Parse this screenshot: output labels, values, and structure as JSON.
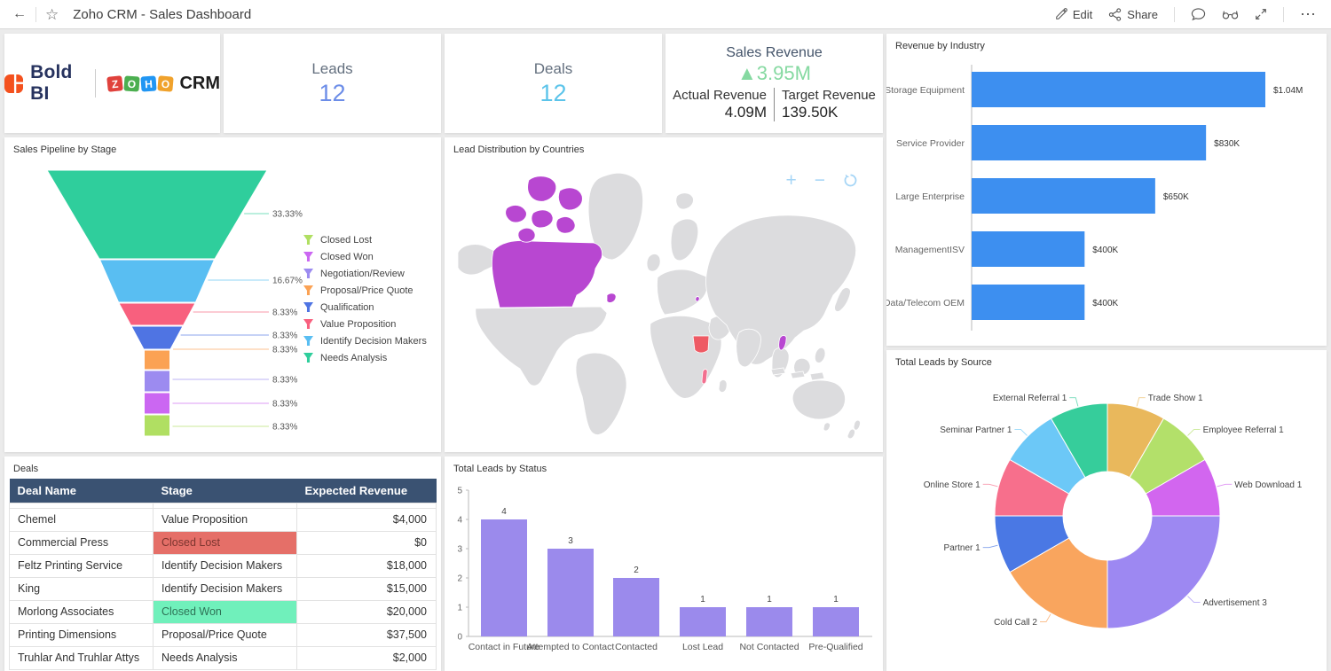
{
  "header": {
    "title": "Zoho CRM - Sales Dashboard",
    "edit_label": "Edit",
    "share_label": "Share"
  },
  "cards": {
    "logo": {
      "brand": "Bold BI",
      "zoho_letters": [
        "Z",
        "O",
        "H",
        "O"
      ],
      "zoho_colors": [
        "#e0413c",
        "#4caf50",
        "#2196f3",
        "#f0a22c"
      ],
      "crm": "CRM"
    },
    "leads": {
      "label": "Leads",
      "value": "12",
      "value_color": "#6c8de8"
    },
    "deals": {
      "label": "Deals",
      "value": "12",
      "value_color": "#5cc4ea"
    },
    "revenue": {
      "title": "Sales Revenue",
      "delta": "▲3.95M",
      "delta_color": "#85d9a1",
      "actual_label": "Actual Revenue",
      "actual_value": "4.09M",
      "target_label": "Target Revenue",
      "target_value": "139.50K"
    }
  },
  "panels": {
    "revenue_by_industry": {
      "title": "Revenue by Industry",
      "type": "bar",
      "orientation": "horizontal",
      "bar_color": "#3d8ff0",
      "categories": [
        "Storage Equipment",
        "Service Provider",
        "Large Enterprise",
        "ManagementISV",
        "Data/Telecom OEM"
      ],
      "values_k": [
        1040,
        830,
        650,
        400,
        400
      ],
      "value_labels": [
        "$1.04M",
        "$830K",
        "$650K",
        "$400K",
        "$400K"
      ]
    },
    "sales_pipeline": {
      "title": "Sales Pipeline by Stage",
      "type": "funnel",
      "segments": [
        {
          "name": "Needs Analysis",
          "pct": "33.33%",
          "color": "#2fce9c"
        },
        {
          "name": "Identify Decision Makers",
          "pct": "16.67%",
          "color": "#59bef2"
        },
        {
          "name": "Value Proposition",
          "pct": "8.33%",
          "color": "#f8607e"
        },
        {
          "name": "Qualification",
          "pct": "8.33%",
          "color": "#4f74e3"
        },
        {
          "name": "Proposal/Price Quote",
          "pct": "8.33%",
          "color": "#fba254"
        },
        {
          "name": "Negotiation/Review",
          "pct": "8.33%",
          "color": "#9c8bf0"
        },
        {
          "name": "Closed Won",
          "pct": "8.33%",
          "color": "#cb67f2"
        },
        {
          "name": "Closed Lost",
          "pct": "8.33%",
          "color": "#b0df62"
        }
      ],
      "legend_order": [
        "Closed Lost",
        "Closed Won",
        "Negotiation/Review",
        "Proposal/Price Quote",
        "Qualification",
        "Value Proposition",
        "Identify Decision Makers",
        "Needs Analysis"
      ]
    },
    "map": {
      "title": "Lead Distribution by Countries",
      "land_color": "#dcdcde",
      "highlights": {
        "canada": "#b847d1",
        "sudan": "#ee5a64",
        "laos": "#b847d1",
        "malawi": "#f2708f",
        "moldova": "#b847d1"
      },
      "zoom_in": "+",
      "zoom_out": "−"
    },
    "deals_table": {
      "title": "Deals",
      "columns": [
        "Deal Name",
        "Stage",
        "Expected Revenue"
      ],
      "rows": [
        {
          "name": "Chemel",
          "stage": "Value Proposition",
          "revenue": "$4,000",
          "variant": "plain"
        },
        {
          "name": "Commercial Press",
          "stage": "Closed Lost",
          "revenue": "$0",
          "variant": "lost"
        },
        {
          "name": "Feltz Printing Service",
          "stage": "Identify Decision Makers",
          "revenue": "$18,000",
          "variant": "plain"
        },
        {
          "name": "King",
          "stage": "Identify Decision Makers",
          "revenue": "$15,000",
          "variant": "plain"
        },
        {
          "name": "Morlong Associates",
          "stage": "Closed Won",
          "revenue": "$20,000",
          "variant": "won"
        },
        {
          "name": "Printing Dimensions",
          "stage": "Proposal/Price Quote",
          "revenue": "$37,500",
          "variant": "plain"
        },
        {
          "name": "Truhlar And Truhlar Attys",
          "stage": "Needs Analysis",
          "revenue": "$2,000",
          "variant": "plain"
        }
      ]
    },
    "leads_by_status": {
      "title": "Total Leads by Status",
      "type": "bar",
      "bar_color": "#9b8aec",
      "categories": [
        "Contact in Future",
        "Attempted to Contact",
        "Contacted",
        "Lost Lead",
        "Not Contacted",
        "Pre-Qualified"
      ],
      "values": [
        4,
        3,
        2,
        1,
        1,
        1
      ],
      "ylim": [
        0,
        5
      ]
    },
    "leads_by_source": {
      "title": "Total Leads by Source",
      "type": "donut",
      "slices": [
        {
          "label": "Trade Show",
          "value": 1,
          "color": "#e9b85c"
        },
        {
          "label": "Employee Referral",
          "value": 1,
          "color": "#b3e06a"
        },
        {
          "label": "Web Download",
          "value": 1,
          "color": "#d266ef"
        },
        {
          "label": "Advertisement",
          "value": 3,
          "color": "#9d88f2"
        },
        {
          "label": "Cold Call",
          "value": 2,
          "color": "#f9a55e"
        },
        {
          "label": "Partner",
          "value": 1,
          "color": "#4a78e4"
        },
        {
          "label": "Online Store",
          "value": 1,
          "color": "#f76f8c"
        },
        {
          "label": "Seminar Partner",
          "value": 1,
          "color": "#6cc8f7"
        },
        {
          "label": "External Referral",
          "value": 1,
          "color": "#36cd9b"
        }
      ]
    }
  }
}
